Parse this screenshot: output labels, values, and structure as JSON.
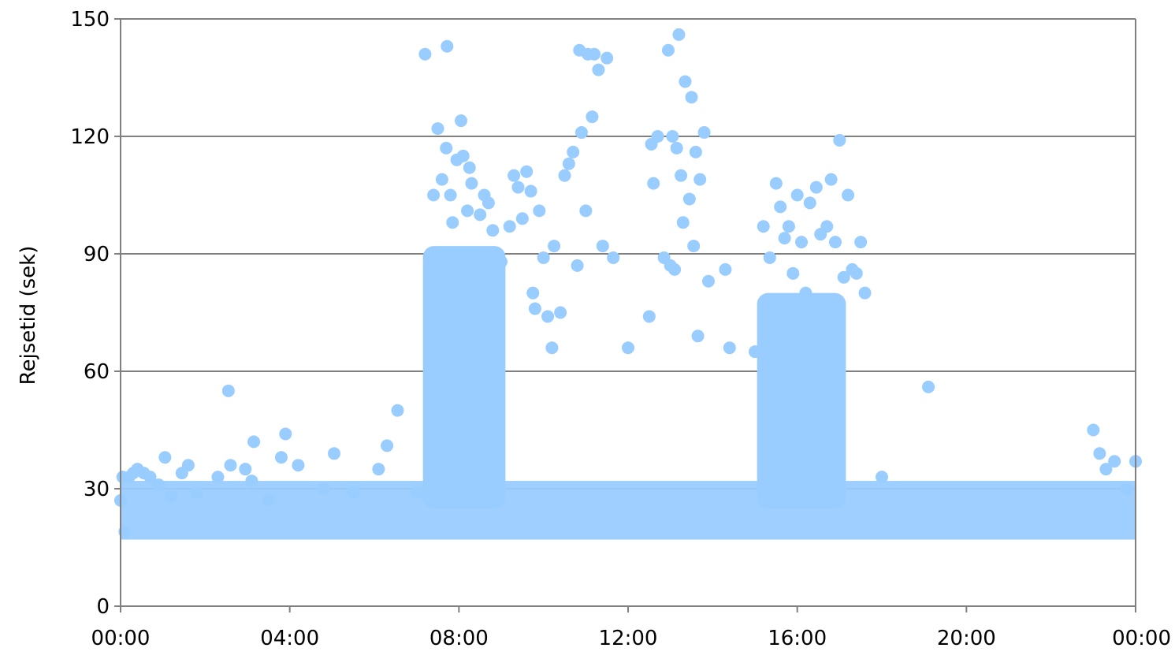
{
  "chart_data": {
    "type": "scatter",
    "title": "",
    "xlabel": "",
    "ylabel": "Rejsetid (sek)",
    "xlim": [
      0,
      24
    ],
    "ylim": [
      0,
      150
    ],
    "x_unit": "hours of day (00:00–24:00)",
    "y_ticks": [
      0,
      30,
      60,
      90,
      120,
      150
    ],
    "x_ticks": [
      0,
      4,
      8,
      12,
      16,
      20,
      24
    ],
    "x_tick_labels": [
      "00:00",
      "04:00",
      "08:00",
      "12:00",
      "16:00",
      "20:00",
      "00:00"
    ],
    "grid": "horizontal",
    "legend": "none",
    "marker_color": "#99ccff",
    "axis_color": "#808080",
    "gridline_color": "#000000",
    "series": [
      {
        "points": [
          [
            0.0,
            27
          ],
          [
            0.05,
            33
          ],
          [
            0.1,
            19
          ],
          [
            0.2,
            33
          ],
          [
            0.3,
            34
          ],
          [
            0.4,
            35
          ],
          [
            0.55,
            34
          ],
          [
            0.7,
            33
          ],
          [
            0.9,
            31
          ],
          [
            1.05,
            38
          ],
          [
            1.2,
            28
          ],
          [
            1.45,
            34
          ],
          [
            1.6,
            36
          ],
          [
            1.8,
            29
          ],
          [
            2.3,
            33
          ],
          [
            2.55,
            55
          ],
          [
            2.6,
            36
          ],
          [
            2.95,
            35
          ],
          [
            3.1,
            32
          ],
          [
            3.15,
            42
          ],
          [
            3.5,
            27
          ],
          [
            3.8,
            38
          ],
          [
            3.9,
            44
          ],
          [
            4.2,
            36
          ],
          [
            4.8,
            30
          ],
          [
            5.05,
            39
          ],
          [
            5.5,
            29
          ],
          [
            6.1,
            35
          ],
          [
            6.3,
            41
          ],
          [
            6.55,
            50
          ],
          [
            7.0,
            29
          ],
          [
            7.2,
            141
          ],
          [
            7.4,
            105
          ],
          [
            7.5,
            122
          ],
          [
            7.6,
            109
          ],
          [
            7.7,
            117
          ],
          [
            7.72,
            143
          ],
          [
            7.8,
            105
          ],
          [
            7.85,
            98
          ],
          [
            7.95,
            114
          ],
          [
            8.05,
            124
          ],
          [
            8.1,
            115
          ],
          [
            8.2,
            101
          ],
          [
            8.25,
            112
          ],
          [
            8.3,
            108
          ],
          [
            8.5,
            100
          ],
          [
            8.6,
            105
          ],
          [
            8.7,
            103
          ],
          [
            8.8,
            96
          ],
          [
            9.0,
            88
          ],
          [
            9.2,
            97
          ],
          [
            9.3,
            110
          ],
          [
            9.4,
            107
          ],
          [
            9.5,
            99
          ],
          [
            9.6,
            111
          ],
          [
            9.7,
            106
          ],
          [
            9.75,
            80
          ],
          [
            9.8,
            76
          ],
          [
            9.9,
            101
          ],
          [
            10.0,
            89
          ],
          [
            10.1,
            74
          ],
          [
            10.2,
            66
          ],
          [
            10.25,
            92
          ],
          [
            10.4,
            75
          ],
          [
            10.5,
            110
          ],
          [
            10.6,
            113
          ],
          [
            10.7,
            116
          ],
          [
            10.8,
            87
          ],
          [
            10.85,
            142
          ],
          [
            10.9,
            121
          ],
          [
            11.0,
            101
          ],
          [
            11.05,
            141
          ],
          [
            11.15,
            125
          ],
          [
            11.2,
            141
          ],
          [
            11.3,
            137
          ],
          [
            11.4,
            92
          ],
          [
            11.5,
            140
          ],
          [
            11.65,
            89
          ],
          [
            12.0,
            66
          ],
          [
            12.5,
            74
          ],
          [
            12.55,
            118
          ],
          [
            12.6,
            108
          ],
          [
            12.7,
            120
          ],
          [
            12.85,
            89
          ],
          [
            12.95,
            142
          ],
          [
            13.0,
            87
          ],
          [
            13.05,
            120
          ],
          [
            13.1,
            86
          ],
          [
            13.15,
            117
          ],
          [
            13.2,
            146
          ],
          [
            13.25,
            110
          ],
          [
            13.3,
            98
          ],
          [
            13.35,
            134
          ],
          [
            13.45,
            104
          ],
          [
            13.5,
            130
          ],
          [
            13.55,
            92
          ],
          [
            13.6,
            116
          ],
          [
            13.65,
            69
          ],
          [
            13.7,
            109
          ],
          [
            13.8,
            121
          ],
          [
            13.9,
            83
          ],
          [
            14.3,
            86
          ],
          [
            14.4,
            66
          ],
          [
            15.0,
            65
          ],
          [
            15.2,
            97
          ],
          [
            15.35,
            89
          ],
          [
            15.5,
            108
          ],
          [
            15.6,
            102
          ],
          [
            15.7,
            94
          ],
          [
            15.8,
            97
          ],
          [
            15.9,
            85
          ],
          [
            16.0,
            105
          ],
          [
            16.1,
            93
          ],
          [
            16.2,
            80
          ],
          [
            16.3,
            103
          ],
          [
            16.45,
            107
          ],
          [
            16.55,
            95
          ],
          [
            16.7,
            97
          ],
          [
            16.8,
            109
          ],
          [
            16.9,
            93
          ],
          [
            17.0,
            119
          ],
          [
            17.1,
            84
          ],
          [
            17.2,
            105
          ],
          [
            17.3,
            86
          ],
          [
            17.4,
            85
          ],
          [
            17.5,
            93
          ],
          [
            17.6,
            80
          ],
          [
            18.0,
            33
          ],
          [
            19.1,
            56
          ],
          [
            23.0,
            45
          ],
          [
            23.15,
            39
          ],
          [
            23.3,
            35
          ],
          [
            23.5,
            37
          ],
          [
            23.8,
            30
          ],
          [
            24.0,
            37
          ]
        ]
      }
    ]
  }
}
